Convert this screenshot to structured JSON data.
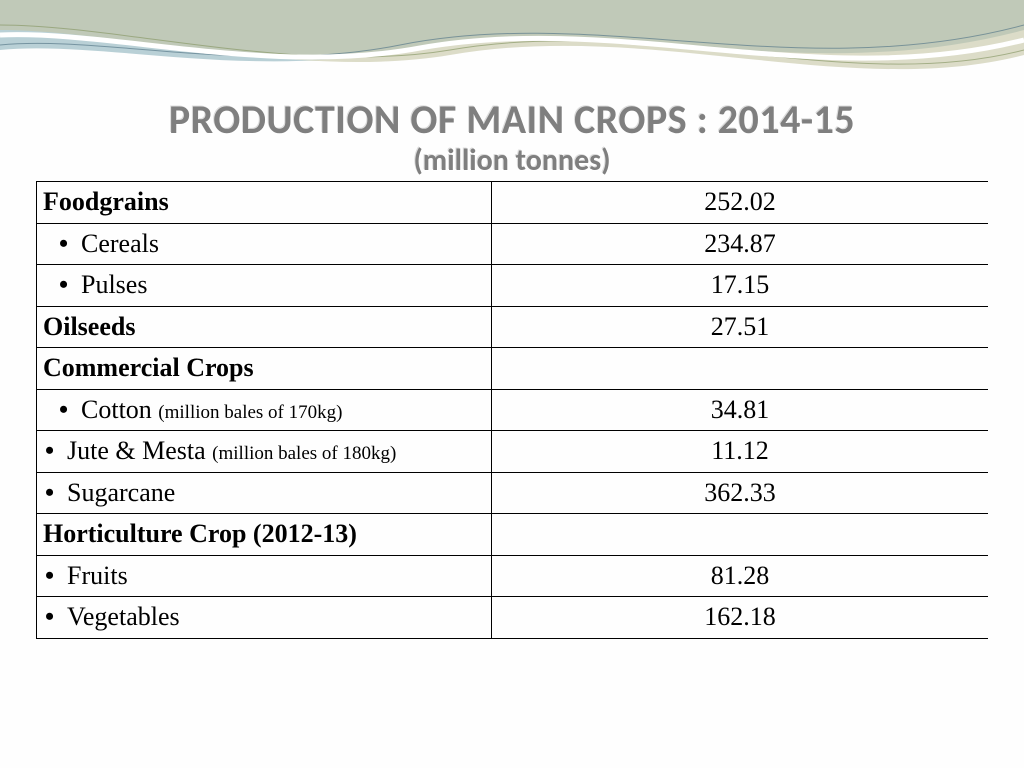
{
  "title": "PRODUCTION OF MAIN CROPS : 2014-15",
  "subtitle": "(million tonnes)",
  "colors": {
    "title_text": "#7f7f7f",
    "wave_blue": "#a8c4cc",
    "wave_olive": "#c4c4a4",
    "wave_line1": "#5a7a8a",
    "wave_line2": "#8a9a6a",
    "border": "#000000",
    "background": "#fefefe"
  },
  "table": {
    "col1_width": 455,
    "total_width": 952,
    "font_size": 26,
    "note_font_size": 19,
    "rows": [
      {
        "label": "Foodgrains",
        "value": "252.02",
        "bold": true,
        "bullet": false,
        "indent": "none"
      },
      {
        "label": "Cereals",
        "value": "234.87",
        "bold": false,
        "bullet": true,
        "indent": "indent"
      },
      {
        "label": "Pulses",
        "value": "17.15",
        "bold": false,
        "bullet": true,
        "indent": "indent"
      },
      {
        "label": "Oilseeds",
        "value": "27.51",
        "bold": true,
        "bullet": false,
        "indent": "none"
      },
      {
        "label": "Commercial Crops",
        "value": "",
        "bold": true,
        "bullet": false,
        "indent": "none"
      },
      {
        "label": "Cotton ",
        "note": "(million bales of 170kg)",
        "value": "34.81",
        "bold": false,
        "bullet": true,
        "indent": "indent"
      },
      {
        "label": "Jute & Mesta ",
        "note": "(million bales of 180kg)",
        "value": "11.12",
        "bold": false,
        "bullet": true,
        "indent": "tight"
      },
      {
        "label": "Sugarcane",
        "value": "362.33",
        "bold": false,
        "bullet": true,
        "indent": "tight"
      },
      {
        "label": "Horticulture Crop (2012-13)",
        "value": "",
        "bold": true,
        "bullet": false,
        "indent": "none"
      },
      {
        "label": "Fruits",
        "value": "81.28",
        "bold": false,
        "bullet": true,
        "indent": "tight"
      },
      {
        "label": "Vegetables",
        "value": "162.18",
        "bold": false,
        "bullet": true,
        "indent": "tight"
      }
    ]
  }
}
